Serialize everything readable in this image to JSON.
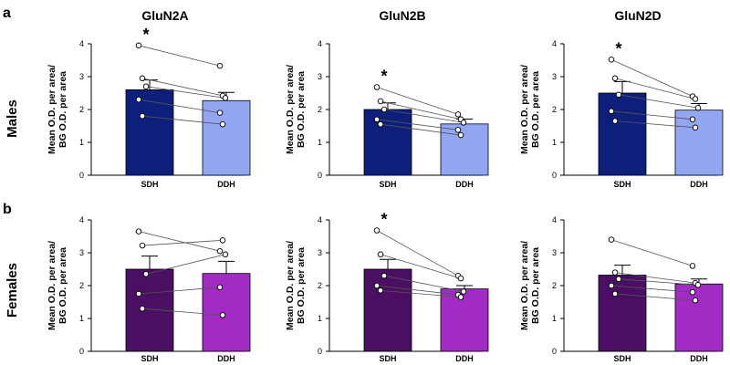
{
  "panels": {
    "a": "a",
    "b": "b"
  },
  "row_labels": [
    "Males",
    "Females"
  ],
  "column_titles": [
    "GluN2A",
    "GluN2B",
    "GluN2D"
  ],
  "colors": {
    "Males": {
      "SDH": "#0d1f7a",
      "DDH": "#92a6f2"
    },
    "Females": {
      "SDH": "#4a0f63",
      "DDH": "#a12bc4"
    },
    "axis": "#000000",
    "line": "#555555"
  },
  "chart_data": [
    {
      "type": "bar",
      "row": "Males",
      "title": "GluN2A",
      "categories": [
        "SDH",
        "DDH"
      ],
      "values": [
        2.6,
        2.27
      ],
      "errors": [
        0.3,
        0.25
      ],
      "ylabel_lines": [
        "Mean O.D. per area/",
        "BG O.D. per area"
      ],
      "ylim": [
        0,
        4
      ],
      "yticks": [
        "0",
        "1",
        "2",
        "3",
        "4"
      ],
      "significance": "*",
      "pairs": [
        [
          3.95,
          3.33
        ],
        [
          2.95,
          2.42
        ],
        [
          2.7,
          2.35
        ],
        [
          2.3,
          1.9
        ],
        [
          1.8,
          1.55
        ]
      ]
    },
    {
      "type": "bar",
      "row": "Males",
      "title": "GluN2B",
      "categories": [
        "SDH",
        "DDH"
      ],
      "values": [
        2.0,
        1.56
      ],
      "errors": [
        0.2,
        0.15
      ],
      "ylabel_lines": [
        "Mean O.D. per area/",
        "BG O.D. per area"
      ],
      "ylim": [
        0,
        4
      ],
      "yticks": [
        "0",
        "1",
        "2",
        "3",
        "4"
      ],
      "significance": "*",
      "pairs": [
        [
          2.68,
          1.85
        ],
        [
          2.25,
          1.7
        ],
        [
          2.0,
          1.6
        ],
        [
          1.7,
          1.38
        ],
        [
          1.55,
          1.22
        ]
      ]
    },
    {
      "type": "bar",
      "row": "Males",
      "title": "GluN2D",
      "categories": [
        "SDH",
        "DDH"
      ],
      "values": [
        2.5,
        1.98
      ],
      "errors": [
        0.35,
        0.2
      ],
      "ylabel_lines": [
        "Mean O.D. per area/",
        "BG O.D. per area"
      ],
      "ylim": [
        0,
        4
      ],
      "yticks": [
        "0",
        "1",
        "2",
        "3",
        "4"
      ],
      "significance": "*",
      "pairs": [
        [
          3.52,
          2.4
        ],
        [
          2.95,
          2.32
        ],
        [
          2.45,
          2.05
        ],
        [
          1.95,
          1.7
        ],
        [
          1.65,
          1.45
        ]
      ]
    },
    {
      "type": "bar",
      "row": "Females",
      "title": "GluN2A",
      "categories": [
        "SDH",
        "DDH"
      ],
      "values": [
        2.5,
        2.37
      ],
      "errors": [
        0.4,
        0.37
      ],
      "ylabel_lines": [
        "Mean O.D. per area/",
        "BG O.D. per area"
      ],
      "ylim": [
        0,
        4
      ],
      "yticks": [
        "0",
        "1",
        "2",
        "3",
        "4"
      ],
      "significance": "",
      "pairs": [
        [
          3.65,
          3.05
        ],
        [
          3.22,
          3.38
        ],
        [
          2.35,
          2.95
        ],
        [
          1.75,
          1.95
        ],
        [
          1.3,
          1.1
        ]
      ]
    },
    {
      "type": "bar",
      "row": "Females",
      "title": "GluN2B",
      "categories": [
        "SDH",
        "DDH"
      ],
      "values": [
        2.5,
        1.9
      ],
      "errors": [
        0.3,
        0.1
      ],
      "ylabel_lines": [
        "Mean O.D. per area/",
        "BG O.D. per area"
      ],
      "ylim": [
        0,
        4
      ],
      "yticks": [
        "0",
        "1",
        "2",
        "3",
        "4"
      ],
      "significance": "*",
      "pairs": [
        [
          3.68,
          2.3
        ],
        [
          2.95,
          2.22
        ],
        [
          2.3,
          1.82
        ],
        [
          2.0,
          1.72
        ],
        [
          1.85,
          1.65
        ]
      ]
    },
    {
      "type": "bar",
      "row": "Females",
      "title": "GluN2D",
      "categories": [
        "SDH",
        "DDH"
      ],
      "values": [
        2.32,
        2.05
      ],
      "errors": [
        0.3,
        0.15
      ],
      "ylabel_lines": [
        "Mean O.D. per area/",
        "BG O.D. per area"
      ],
      "ylim": [
        0,
        4
      ],
      "yticks": [
        "0",
        "1",
        "2",
        "3",
        "4"
      ],
      "significance": "",
      "pairs": [
        [
          3.4,
          2.6
        ],
        [
          2.4,
          2.08
        ],
        [
          2.2,
          2.02
        ],
        [
          2.0,
          1.8
        ],
        [
          1.75,
          1.55
        ]
      ]
    }
  ]
}
